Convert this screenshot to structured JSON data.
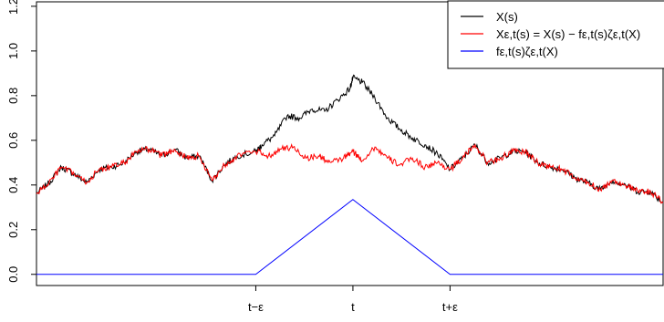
{
  "chart_data": {
    "type": "line",
    "title": "",
    "xlabel": "",
    "ylabel": "",
    "ylim": [
      -0.05,
      1.22
    ],
    "xlim": [
      0,
      1
    ],
    "y_ticks": [
      "0.0",
      "0.2",
      "0.4",
      "0.6",
      "0.8",
      "1.0",
      "1.2"
    ],
    "y_tick_values": [
      0.0,
      0.2,
      0.4,
      0.6,
      0.8,
      1.0,
      1.2
    ],
    "x_ticks": [
      {
        "label": "t−ε",
        "value": 0.35
      },
      {
        "label": "t",
        "value": 0.505
      },
      {
        "label": "t+ε",
        "value": 0.66
      }
    ],
    "grid": false,
    "legend_position": "top-right",
    "series": [
      {
        "name": "X(s)",
        "color": "#000000",
        "x": [
          0.0,
          0.02,
          0.04,
          0.06,
          0.08,
          0.1,
          0.12,
          0.14,
          0.16,
          0.18,
          0.2,
          0.22,
          0.24,
          0.26,
          0.28,
          0.3,
          0.32,
          0.35,
          0.36,
          0.38,
          0.4,
          0.42,
          0.44,
          0.46,
          0.48,
          0.5,
          0.505,
          0.52,
          0.54,
          0.56,
          0.58,
          0.6,
          0.62,
          0.64,
          0.66,
          0.68,
          0.7,
          0.72,
          0.74,
          0.76,
          0.78,
          0.8,
          0.82,
          0.84,
          0.86,
          0.88,
          0.9,
          0.92,
          0.94,
          0.96,
          0.98,
          1.0
        ],
        "y": [
          0.36,
          0.41,
          0.48,
          0.45,
          0.41,
          0.47,
          0.48,
          0.5,
          0.55,
          0.56,
          0.53,
          0.56,
          0.52,
          0.53,
          0.42,
          0.49,
          0.53,
          0.55,
          0.58,
          0.62,
          0.71,
          0.7,
          0.74,
          0.73,
          0.78,
          0.83,
          0.88,
          0.86,
          0.79,
          0.7,
          0.65,
          0.61,
          0.58,
          0.54,
          0.47,
          0.52,
          0.58,
          0.5,
          0.52,
          0.55,
          0.55,
          0.5,
          0.48,
          0.47,
          0.43,
          0.41,
          0.38,
          0.42,
          0.4,
          0.37,
          0.37,
          0.32
        ]
      },
      {
        "name": "Xε,t(s) = X(s) − fε,t(s)ζε,t(X)",
        "color": "#ff0000",
        "x": [
          0.0,
          0.02,
          0.04,
          0.06,
          0.08,
          0.1,
          0.12,
          0.14,
          0.16,
          0.18,
          0.2,
          0.22,
          0.24,
          0.26,
          0.28,
          0.3,
          0.32,
          0.35,
          0.37,
          0.39,
          0.41,
          0.43,
          0.45,
          0.47,
          0.49,
          0.505,
          0.52,
          0.54,
          0.56,
          0.58,
          0.6,
          0.62,
          0.64,
          0.66,
          0.68,
          0.7,
          0.72,
          0.74,
          0.76,
          0.78,
          0.8,
          0.82,
          0.84,
          0.86,
          0.88,
          0.9,
          0.92,
          0.94,
          0.96,
          0.98,
          1.0
        ],
        "y": [
          0.36,
          0.41,
          0.48,
          0.45,
          0.41,
          0.47,
          0.48,
          0.5,
          0.55,
          0.56,
          0.53,
          0.56,
          0.52,
          0.53,
          0.42,
          0.49,
          0.53,
          0.55,
          0.53,
          0.56,
          0.57,
          0.52,
          0.53,
          0.5,
          0.52,
          0.55,
          0.51,
          0.57,
          0.52,
          0.49,
          0.52,
          0.48,
          0.5,
          0.47,
          0.52,
          0.58,
          0.5,
          0.52,
          0.55,
          0.55,
          0.5,
          0.48,
          0.47,
          0.43,
          0.41,
          0.38,
          0.42,
          0.4,
          0.37,
          0.37,
          0.32
        ]
      },
      {
        "name": "fε,t(s)ζε,t(X)",
        "color": "#0000ff",
        "x": [
          0.0,
          0.35,
          0.505,
          0.66,
          1.0
        ],
        "y": [
          0.0,
          0.0,
          0.335,
          0.0,
          0.0
        ]
      }
    ]
  },
  "legend": {
    "items": [
      {
        "name": "X(s)",
        "color": "#000000"
      },
      {
        "name": "Xε,t(s) = X(s) − fε,t(s)ζε,t(X)",
        "color": "#ff0000"
      },
      {
        "name": "fε,t(s)ζε,t(X)",
        "color": "#0000ff"
      }
    ]
  }
}
